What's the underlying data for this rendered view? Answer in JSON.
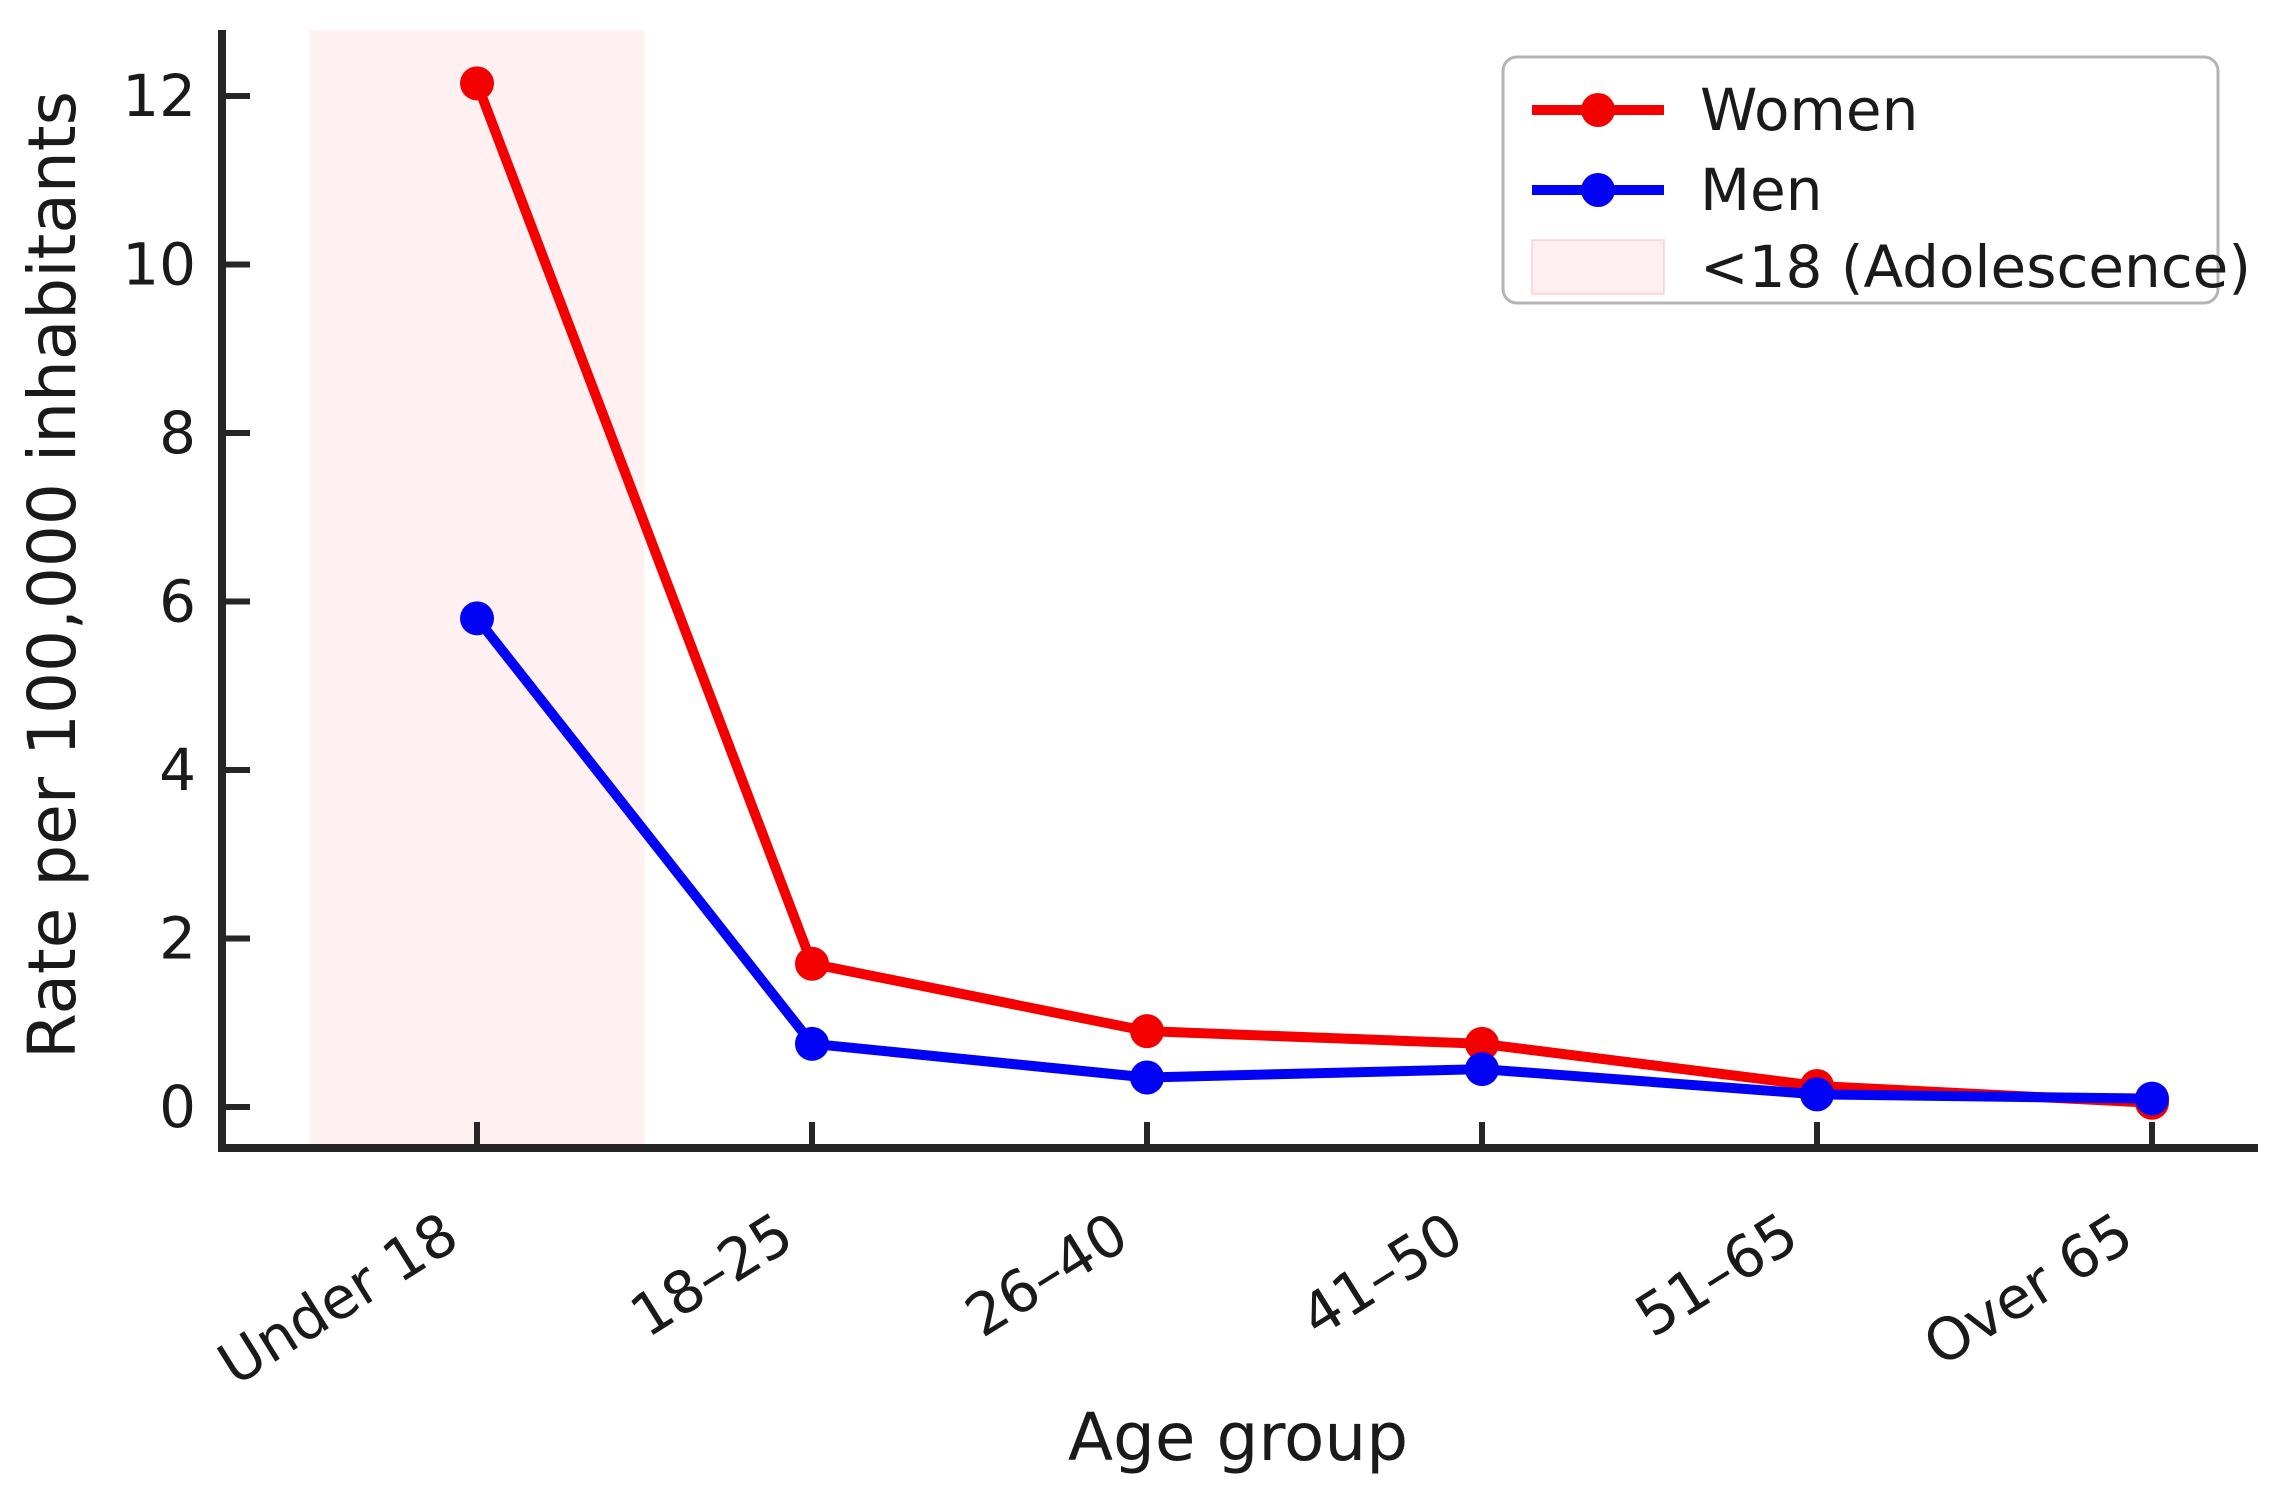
{
  "chart_data": {
    "type": "line",
    "title": "",
    "xlabel": "Age group",
    "ylabel": "Rate per 100,000 inhabitants",
    "categories": [
      "Under 18",
      "18–25",
      "26–40",
      "41–50",
      "51–65",
      "Over 65"
    ],
    "series": [
      {
        "name": "Women",
        "color": "#f50000",
        "marker": "circle",
        "values": [
          12.15,
          1.7,
          0.9,
          0.75,
          0.25,
          0.05
        ]
      },
      {
        "name": "Men",
        "color": "#0202f5",
        "marker": "circle",
        "values": [
          5.8,
          0.75,
          0.35,
          0.45,
          0.15,
          0.1
        ]
      }
    ],
    "yticks": [
      0,
      2,
      4,
      6,
      8,
      10,
      12
    ],
    "ylim": [
      -0.5,
      12.8
    ],
    "grid": false,
    "axis_color": "#262626",
    "text_color": "#1a1a1a",
    "shaded_band": {
      "label": "<18 (Adolescence)",
      "color": "#ff0000",
      "opacity": 0.055,
      "covers_category": "Under 18",
      "x_range_categories": [
        -0.5,
        0.5
      ]
    },
    "legend": {
      "position": "upper right",
      "entries": [
        {
          "label": "Women",
          "type": "line",
          "color": "#f50000"
        },
        {
          "label": "Men",
          "type": "line",
          "color": "#0202f5"
        },
        {
          "label": "<18 (Adolescence)",
          "type": "patch",
          "color": "#fdf0f0"
        }
      ]
    }
  }
}
